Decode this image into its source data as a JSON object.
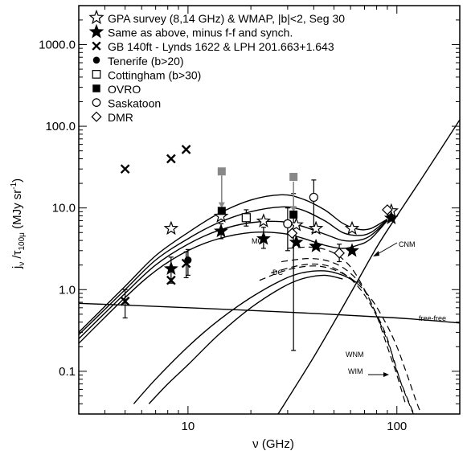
{
  "chart_data": {
    "type": "scatter",
    "xlabel": "ν (GHz)",
    "ylabel_main": "j",
    "ylabel_sub1": "ν",
    "ylabel_mid": " /τ",
    "ylabel_sub2": "100μ",
    "ylabel_unit_pre": " (MJy sr",
    "ylabel_unit_sup": "-1",
    "ylabel_unit_post": ")",
    "xscale": "log",
    "yscale": "log",
    "xlim": [
      3,
      200
    ],
    "ylim": [
      0.03,
      3000
    ],
    "xticks": [
      {
        "v": 10,
        "label": "10"
      },
      {
        "v": 100,
        "label": "100"
      }
    ],
    "yticks": [
      {
        "v": 0.1,
        "label": "0.1"
      },
      {
        "v": 1,
        "label": "1.0"
      },
      {
        "v": 10,
        "label": "10.0"
      },
      {
        "v": 100,
        "label": "100.0"
      },
      {
        "v": 1000,
        "label": "1000.0"
      }
    ],
    "legend": {
      "placement": "top-left",
      "entries": [
        {
          "marker": "open-star",
          "label": "GPA survey (8,14 GHz) & WMAP, |b|<2, Seg 30"
        },
        {
          "marker": "filled-star",
          "label": "Same as above, minus f-f and synch."
        },
        {
          "marker": "x",
          "label": "GB 140ft - Lynds 1622 & LPH 201.663+1.643"
        },
        {
          "marker": "filled-circle",
          "label": "Tenerife (b>20)"
        },
        {
          "marker": "open-square",
          "label": "Cottingham (b>30)"
        },
        {
          "marker": "filled-square",
          "label": "OVRO"
        },
        {
          "marker": "open-circle",
          "label": "Saskatoon"
        },
        {
          "marker": "open-diamond",
          "label": "DMR"
        }
      ]
    },
    "series": [
      {
        "marker": "open-star",
        "points": [
          [
            8.3,
            5.6
          ],
          [
            14.4,
            7.9
          ],
          [
            23,
            6.9
          ],
          [
            33,
            6.2
          ],
          [
            41,
            5.6
          ],
          [
            61,
            5.6
          ],
          [
            94,
            9.2
          ]
        ]
      },
      {
        "marker": "filled-star",
        "points": [
          [
            8.3,
            1.8
          ],
          [
            14.4,
            5.2
          ],
          [
            23,
            4.2
          ],
          [
            33,
            3.8
          ],
          [
            41,
            3.4
          ],
          [
            61,
            3.0
          ],
          [
            94,
            7.5
          ]
        ]
      },
      {
        "marker": "x",
        "points": [
          [
            5,
            0.72
          ],
          [
            5,
            30
          ],
          [
            8.3,
            40
          ],
          [
            9.8,
            52
          ],
          [
            8.3,
            1.3
          ],
          [
            9.8,
            2.1
          ]
        ]
      },
      {
        "marker": "filled-circle",
        "points": [
          [
            10,
            2.3
          ]
        ]
      },
      {
        "marker": "open-square",
        "points": [
          [
            19,
            7.6
          ]
        ]
      },
      {
        "marker": "filled-square",
        "points": [
          [
            14.5,
            9.2
          ],
          [
            32,
            8.3
          ]
        ]
      },
      {
        "marker": "open-circle",
        "points": [
          [
            30,
            6.4
          ],
          [
            40,
            13.5
          ]
        ]
      },
      {
        "marker": "open-diamond",
        "points": [
          [
            31.5,
            4.9
          ],
          [
            53,
            2.8
          ],
          [
            90,
            9.5
          ]
        ]
      },
      {
        "marker": "gray-square",
        "points": [
          [
            14.5,
            28
          ],
          [
            32,
            24
          ]
        ]
      }
    ],
    "error_bars": [
      {
        "x": 5,
        "y": 0.72,
        "lo": 0.45,
        "hi": 1.0
      },
      {
        "x": 8.3,
        "y": 1.8,
        "lo": 1.2,
        "hi": 2.5
      },
      {
        "x": 9.8,
        "y": 2.1,
        "lo": 1.4,
        "hi": 2.9
      },
      {
        "x": 10,
        "y": 2.3,
        "lo": 1.5,
        "hi": 3.1
      },
      {
        "x": 14.4,
        "y": 5.2,
        "lo": 4.2,
        "hi": 6.4
      },
      {
        "x": 19,
        "y": 7.6,
        "lo": 6.0,
        "hi": 9.5
      },
      {
        "x": 23,
        "y": 4.2,
        "lo": 3.2,
        "hi": 5.8
      },
      {
        "x": 32,
        "y": 8.3,
        "lo": 0.18,
        "hi": 15
      },
      {
        "x": 40,
        "y": 13.5,
        "lo": 5,
        "hi": 22
      },
      {
        "x": 30,
        "y": 6.4,
        "lo": 3,
        "hi": 10
      },
      {
        "x": 53,
        "y": 2.8,
        "lo": 2.2,
        "hi": 3.6
      }
    ],
    "arrows": [
      {
        "x": 14.5,
        "from": 25,
        "to": 10
      },
      {
        "x": 32,
        "from": 21,
        "to": 9
      }
    ],
    "annotations": [
      {
        "text": "MC"
      },
      {
        "text": "DC"
      },
      {
        "text": "CNM"
      },
      {
        "text": "free-free"
      },
      {
        "text": "WNM"
      },
      {
        "text": "WIM"
      }
    ],
    "curves": [
      {
        "name": "total-MC",
        "style": "solid",
        "points": [
          [
            3,
            0.3
          ],
          [
            5,
            1.1
          ],
          [
            7,
            2.6
          ],
          [
            10,
            5
          ],
          [
            14,
            8.5
          ],
          [
            20,
            12.5
          ],
          [
            28,
            14.5
          ],
          [
            35,
            13
          ],
          [
            45,
            9.5
          ],
          [
            55,
            6.5
          ],
          [
            65,
            5.5
          ],
          [
            75,
            5.6
          ],
          [
            90,
            7.3
          ]
        ]
      },
      {
        "name": "total-DC",
        "style": "solid",
        "points": [
          [
            3,
            0.28
          ],
          [
            5,
            1.0
          ],
          [
            7,
            2.3
          ],
          [
            10,
            4.2
          ],
          [
            14,
            6.6
          ],
          [
            20,
            9
          ],
          [
            28,
            10.3
          ],
          [
            35,
            9.5
          ],
          [
            45,
            7
          ],
          [
            55,
            5
          ],
          [
            65,
            4.6
          ],
          [
            75,
            5
          ],
          [
            90,
            7.2
          ]
        ]
      },
      {
        "name": "total-3",
        "style": "solid",
        "points": [
          [
            3,
            0.25
          ],
          [
            5,
            0.9
          ],
          [
            7,
            2
          ],
          [
            10,
            3.6
          ],
          [
            14,
            5.3
          ],
          [
            20,
            6.6
          ],
          [
            28,
            6.8
          ],
          [
            35,
            6
          ],
          [
            45,
            4.8
          ],
          [
            55,
            4
          ],
          [
            65,
            4
          ],
          [
            75,
            4.6
          ],
          [
            90,
            7
          ]
        ]
      },
      {
        "name": "total-4",
        "style": "solid",
        "points": [
          [
            3,
            0.22
          ],
          [
            5,
            0.8
          ],
          [
            7,
            1.7
          ],
          [
            10,
            3.0
          ],
          [
            14,
            4.2
          ],
          [
            20,
            5.0
          ],
          [
            28,
            4.9
          ],
          [
            35,
            4.3
          ],
          [
            45,
            3.5
          ],
          [
            55,
            3.2
          ],
          [
            65,
            3.5
          ],
          [
            75,
            4.2
          ],
          [
            90,
            7
          ]
        ]
      },
      {
        "name": "spin-1",
        "style": "solid",
        "points": [
          [
            5.5,
            0.04
          ],
          [
            7,
            0.08
          ],
          [
            10,
            0.2
          ],
          [
            14,
            0.42
          ],
          [
            20,
            0.8
          ],
          [
            28,
            1.3
          ],
          [
            35,
            1.6
          ],
          [
            45,
            1.7
          ],
          [
            55,
            1.5
          ],
          [
            65,
            1.2
          ]
        ]
      },
      {
        "name": "spin-2",
        "style": "solid",
        "points": [
          [
            6.5,
            0.04
          ],
          [
            8,
            0.07
          ],
          [
            10,
            0.12
          ],
          [
            14,
            0.28
          ],
          [
            20,
            0.6
          ],
          [
            28,
            1.05
          ],
          [
            35,
            1.35
          ],
          [
            45,
            1.5
          ],
          [
            55,
            1.35
          ]
        ]
      },
      {
        "name": "dust",
        "style": "solid",
        "points": [
          [
            27,
            0.03
          ],
          [
            40,
            0.15
          ],
          [
            60,
            0.9
          ],
          [
            80,
            3.3
          ],
          [
            100,
            8
          ],
          [
            130,
            22
          ],
          [
            200,
            120
          ]
        ]
      },
      {
        "name": "free-free",
        "style": "solid",
        "points": [
          [
            3,
            0.68
          ],
          [
            10,
            0.6
          ],
          [
            30,
            0.53
          ],
          [
            100,
            0.45
          ],
          [
            200,
            0.39
          ]
        ]
      },
      {
        "name": "CNM",
        "style": "dashed",
        "points": [
          [
            30,
            3.2
          ],
          [
            40,
            3.3
          ],
          [
            50,
            2.8
          ],
          [
            60,
            1.9
          ],
          [
            70,
            1.0
          ],
          [
            80,
            0.48
          ],
          [
            90,
            0.2
          ],
          [
            100,
            0.09
          ],
          [
            110,
            0.04
          ]
        ]
      },
      {
        "name": "WNM",
        "style": "dashed",
        "points": [
          [
            28,
            2.2
          ],
          [
            38,
            2.4
          ],
          [
            48,
            2.2
          ],
          [
            58,
            1.7
          ],
          [
            68,
            1.1
          ],
          [
            80,
            0.5
          ],
          [
            90,
            0.25
          ],
          [
            100,
            0.1
          ],
          [
            115,
            0.04
          ],
          [
            125,
            0.025
          ]
        ]
      },
      {
        "name": "WIM",
        "style": "dashed",
        "points": [
          [
            25,
            1.6
          ],
          [
            35,
            2.0
          ],
          [
            45,
            2.0
          ],
          [
            55,
            1.6
          ],
          [
            65,
            1.1
          ],
          [
            75,
            0.65
          ],
          [
            85,
            0.34
          ],
          [
            95,
            0.16
          ],
          [
            105,
            0.07
          ],
          [
            120,
            0.03
          ]
        ]
      },
      {
        "name": "VSG-4",
        "style": "dashed",
        "points": [
          [
            22,
            1.3
          ],
          [
            30,
            1.75
          ],
          [
            40,
            1.95
          ],
          [
            50,
            1.75
          ],
          [
            62,
            1.3
          ],
          [
            75,
            0.78
          ],
          [
            88,
            0.4
          ],
          [
            100,
            0.2
          ],
          [
            112,
            0.09
          ],
          [
            125,
            0.04
          ],
          [
            135,
            0.025
          ]
        ]
      }
    ]
  }
}
